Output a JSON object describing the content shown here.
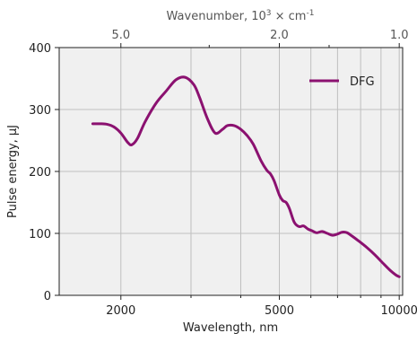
{
  "chart_data": {
    "type": "line",
    "title": "",
    "xlabel": "Wavelength, nm",
    "ylabel": "Pulse energy, μJ",
    "x_scale": "log",
    "xlim": [
      1400,
      10200
    ],
    "ylim": [
      0,
      400
    ],
    "x_ticks": [
      {
        "value": 2000,
        "label": "2000"
      },
      {
        "value": 5000,
        "label": "5000"
      },
      {
        "value": 10000,
        "label": "10000"
      }
    ],
    "y_ticks": [
      {
        "value": 0,
        "label": "0"
      },
      {
        "value": 100,
        "label": "100"
      },
      {
        "value": 200,
        "label": "200"
      },
      {
        "value": 300,
        "label": "300"
      },
      {
        "value": 400,
        "label": "400"
      }
    ],
    "x_grid": [
      2000,
      3000,
      4000,
      5000,
      6000,
      7000,
      8000,
      9000,
      10000
    ],
    "y_grid": [
      100,
      200,
      300
    ],
    "top_axis": {
      "label_prefix": "Wavenumber, 10",
      "label_sup1": "3",
      "label_mid": " × cm",
      "label_sup2": "-1",
      "ticks": [
        {
          "value": 5.0,
          "label": "5.0"
        },
        {
          "value": 2.0,
          "label": "2.0"
        },
        {
          "value": 1.0,
          "label": "1.0"
        }
      ],
      "minor_ticks": [
        3.0,
        1.5
      ]
    },
    "legend": {
      "position": "top-right"
    },
    "colors": {
      "series": "#8b1170",
      "plot_bg": "#f0f0f0",
      "grid": "#bfbfbf"
    },
    "series": [
      {
        "name": "DFG",
        "x": [
          1700,
          1780,
          1850,
          1920,
          2000,
          2080,
          2130,
          2200,
          2300,
          2450,
          2600,
          2750,
          2900,
          3050,
          3150,
          3300,
          3450,
          3600,
          3700,
          3850,
          4000,
          4150,
          4300,
          4500,
          4650,
          4750,
          4850,
          5000,
          5100,
          5200,
          5300,
          5450,
          5600,
          5750,
          5900,
          6050,
          6200,
          6400,
          6600,
          6800,
          7000,
          7200,
          7400,
          7600,
          7900,
          8300,
          8700,
          9100,
          9500,
          9800,
          10000
        ],
        "y": [
          277,
          277,
          276,
          272,
          262,
          247,
          243,
          253,
          280,
          310,
          330,
          348,
          352,
          340,
          320,
          285,
          262,
          268,
          274,
          274,
          268,
          258,
          244,
          217,
          202,
          196,
          185,
          162,
          153,
          150,
          140,
          118,
          111,
          112,
          107,
          104,
          101,
          103,
          100,
          97,
          99,
          102,
          101,
          96,
          88,
          77,
          65,
          52,
          40,
          33,
          30
        ]
      }
    ]
  }
}
